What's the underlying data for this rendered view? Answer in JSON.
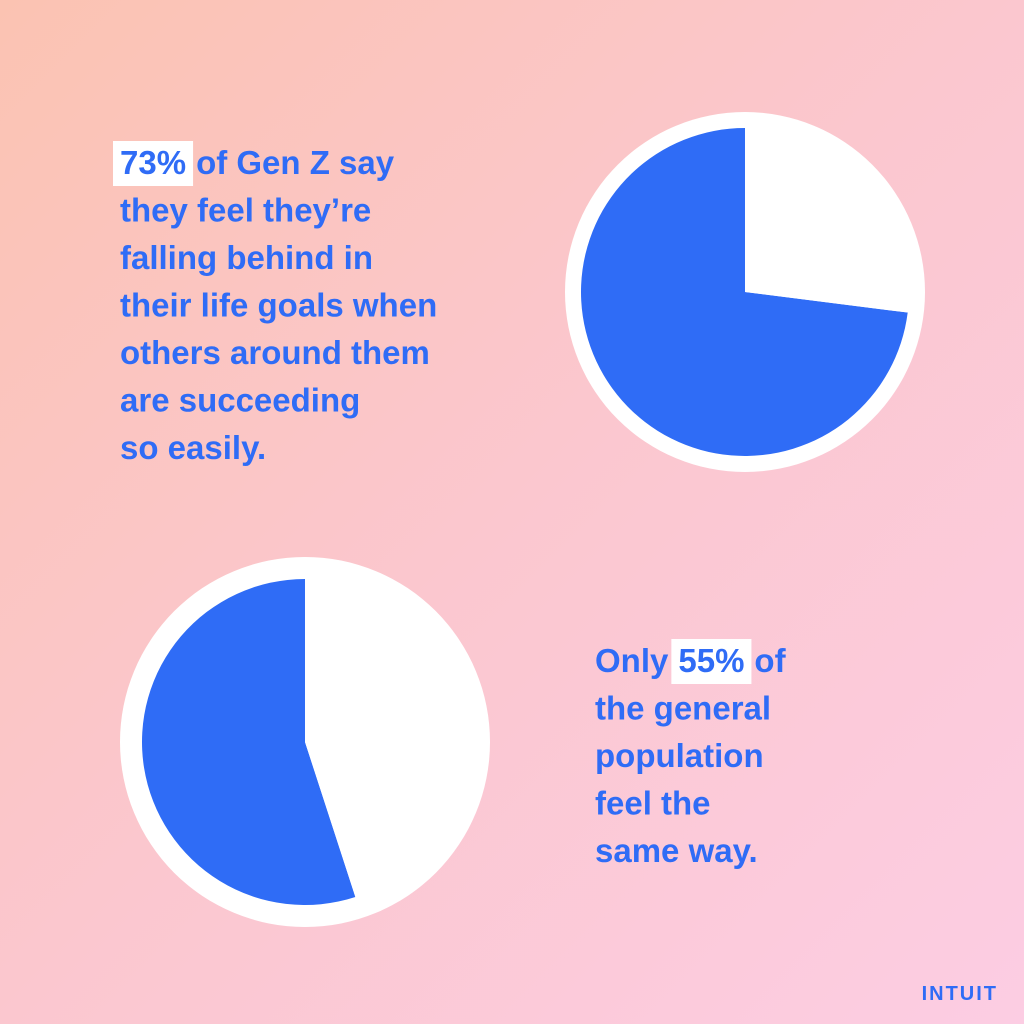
{
  "chart_data": [
    {
      "type": "pie",
      "values": [
        73,
        27
      ],
      "value_labels": [
        "73%",
        null
      ],
      "colors": [
        "#2f6cf6",
        "#ffffff"
      ],
      "text": {
        "after": "of Gen Z say",
        "lines": [
          "they feel they’re",
          "falling behind in",
          "their life goals when",
          "others around them",
          "are succeeding",
          "so easily."
        ]
      }
    },
    {
      "type": "pie",
      "values": [
        55,
        45
      ],
      "value_labels": [
        "55%",
        null
      ],
      "colors": [
        "#2f6cf6",
        "#ffffff"
      ],
      "text": {
        "before": "Only",
        "after": "of",
        "lines": [
          "the general",
          "population",
          "feel the",
          "same way."
        ]
      }
    }
  ],
  "brand": "INTUIT"
}
